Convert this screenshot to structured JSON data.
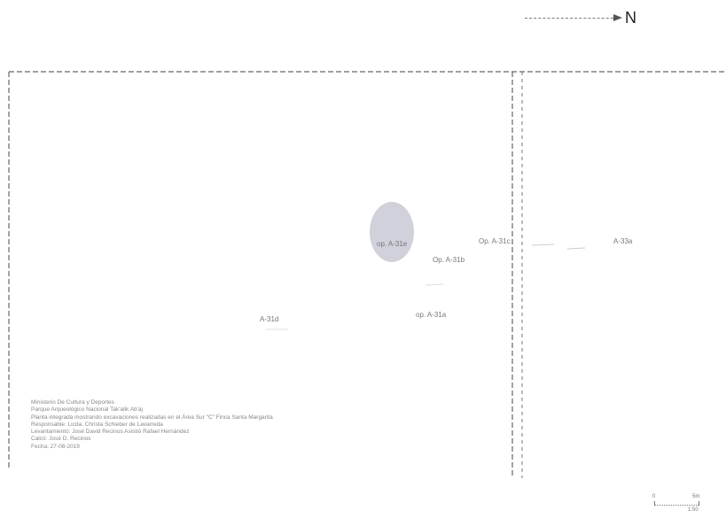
{
  "north_arrow": {
    "letter": "N"
  },
  "areas": [
    {
      "id": "oval",
      "label": "op. A-31e"
    },
    {
      "id": "c",
      "label": "Op. A-31c"
    },
    {
      "id": "b",
      "label": "Op. A-31b"
    },
    {
      "id": "a",
      "label": "op. A-31a"
    },
    {
      "id": "d",
      "label": "A-31d"
    },
    {
      "id": "e",
      "label": "A-33a"
    }
  ],
  "info_block": {
    "lines": [
      "Ministerio De Cultura y Deportes",
      "Parque Arqueológico Nacional Tak'alik Ab'aj",
      "Planta integrada mostrando excavaciones realizadas en el Área Sur \"C\" Finca Santa Margarita",
      "Responsable: Licda. Christa Schieber de Lavarreda",
      "Levantamiento: José David Recinos Asistió Rafael Hernández",
      "Calcó: José D. Recinos",
      "Fecha: 27-08-2019"
    ]
  },
  "scale_bar": {
    "start": "0",
    "end": "5m",
    "ratio": "1:50"
  },
  "colors": {
    "oval_fill": "#c9c9d6",
    "lines": "#666666"
  }
}
